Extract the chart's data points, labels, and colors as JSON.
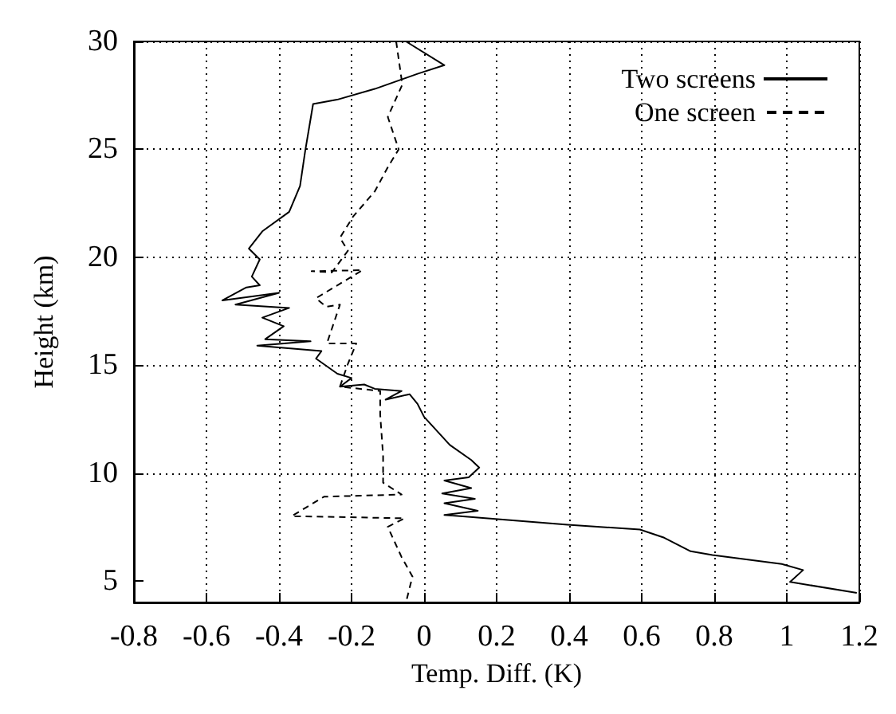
{
  "chart_data": {
    "type": "line",
    "xlabel": "Temp. Diff. (K)",
    "ylabel": "Height (km)",
    "xlim": [
      -0.8,
      1.2
    ],
    "xticks": [
      -0.8,
      -0.6,
      -0.4,
      -0.2,
      0,
      0.2,
      0.4,
      0.6,
      0.8,
      1,
      1.2
    ],
    "ylim": [
      4,
      30
    ],
    "yticks": [
      5,
      10,
      15,
      20,
      25,
      30
    ],
    "grid": true,
    "legend": "top right",
    "marker": "none",
    "series": [
      {
        "name": "Two screens",
        "color": "#000000",
        "line_style": "solid",
        "x": [
          -0.05,
          0.056,
          -0.018,
          -0.136,
          -0.24,
          -0.306,
          -0.328,
          -0.342,
          -0.372,
          -0.446,
          -0.483,
          -0.453,
          -0.475,
          -0.453,
          -0.49,
          -0.556,
          -0.4,
          -0.52,
          -0.372,
          -0.446,
          -0.387,
          -0.438,
          -0.313,
          -0.46,
          -0.283,
          -0.298,
          -0.239,
          -0.2,
          -0.232,
          -0.165,
          -0.136,
          -0.062,
          -0.106,
          -0.04,
          -0.018,
          0,
          0.071,
          0.13,
          0.152,
          0.123,
          0.056,
          0.13,
          0.05,
          0.14,
          0.056,
          0.148,
          0.056,
          0.1,
          0.396,
          0.595,
          0.662,
          0.735,
          0.795,
          0.986,
          1.045,
          1.009,
          1.193
        ],
        "values": [
          30,
          28.9,
          28.5,
          27.8,
          27.3,
          27.1,
          24.9,
          23.3,
          22.1,
          21.2,
          20.4,
          19.9,
          19.1,
          18.7,
          18.6,
          18,
          18.35,
          17.8,
          17.65,
          17.2,
          16.8,
          16.2,
          16.1,
          15.9,
          15.65,
          15.3,
          14.6,
          14.4,
          14,
          14.1,
          13.9,
          13.8,
          13.4,
          13.65,
          13.2,
          12.6,
          11.3,
          10.6,
          10.25,
          9.8,
          9.65,
          9.3,
          9.05,
          8.8,
          8.6,
          8.25,
          8.05,
          8,
          7.6,
          7.38,
          7,
          6.37,
          6.2,
          5.78,
          5.5,
          4.95,
          4.44
        ]
      },
      {
        "name": "One screen",
        "color": "#000000",
        "line_style": "dashed",
        "x": [
          -0.077,
          -0.06,
          -0.1,
          -0.07,
          -0.099,
          -0.136,
          -0.195,
          -0.232,
          -0.21,
          -0.254,
          -0.31,
          -0.17,
          -0.298,
          -0.27,
          -0.232,
          -0.268,
          -0.187,
          -0.21,
          -0.232,
          -0.121,
          -0.121,
          -0.113,
          -0.113,
          -0.062,
          -0.276,
          -0.365,
          -0.054,
          -0.1,
          -0.062,
          -0.032,
          -0.05
        ],
        "values": [
          30,
          28,
          26.5,
          25,
          24.2,
          23.05,
          21.9,
          20.9,
          20.3,
          19.3,
          19.35,
          19.4,
          18.1,
          17.7,
          17.8,
          16,
          16,
          15.06,
          14,
          13.8,
          12.7,
          10.8,
          9.55,
          9,
          8.9,
          8,
          7.9,
          7.5,
          6.1,
          5.2,
          4
        ]
      }
    ]
  }
}
